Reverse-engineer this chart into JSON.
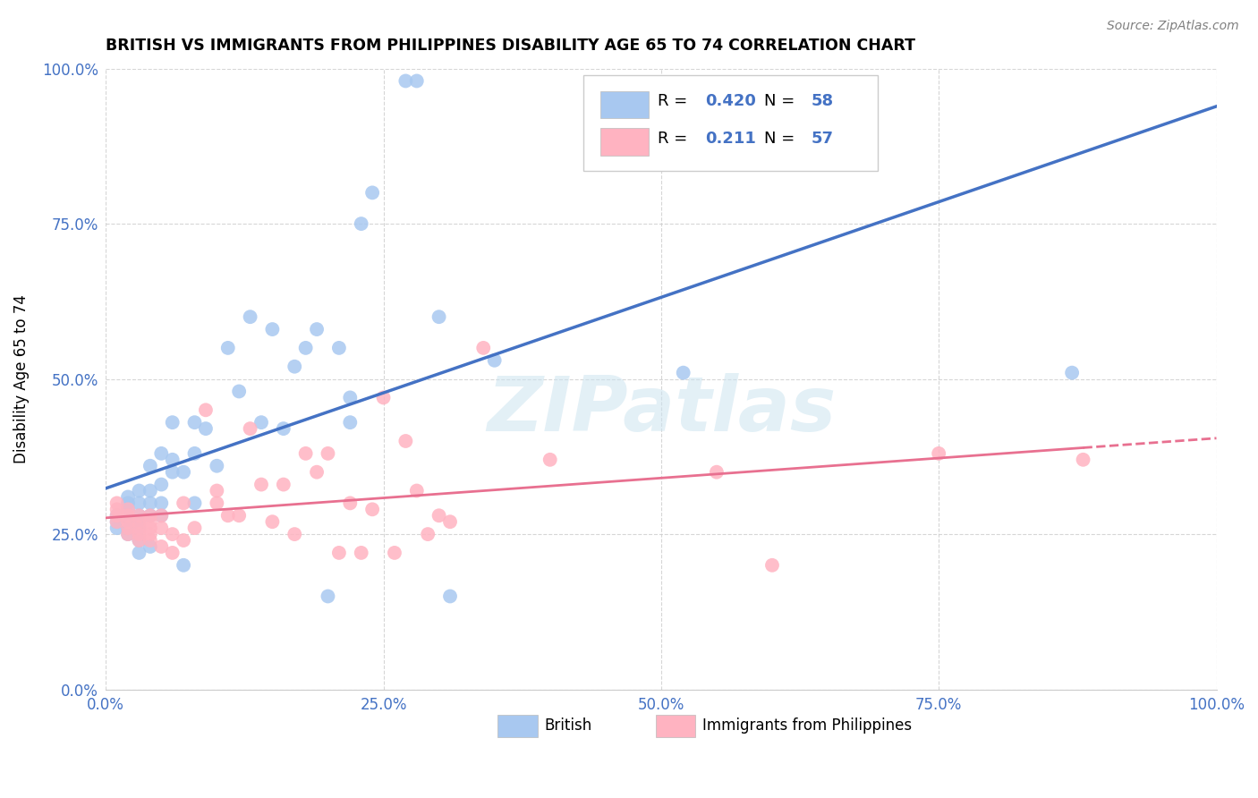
{
  "title": "BRITISH VS IMMIGRANTS FROM PHILIPPINES DISABILITY AGE 65 TO 74 CORRELATION CHART",
  "source": "Source: ZipAtlas.com",
  "ylabel": "Disability Age 65 to 74",
  "xlim": [
    0.0,
    1.0
  ],
  "ylim": [
    0.0,
    1.0
  ],
  "xticks": [
    0.0,
    0.25,
    0.5,
    0.75,
    1.0
  ],
  "yticks": [
    0.0,
    0.25,
    0.5,
    0.75,
    1.0
  ],
  "xticklabels": [
    "0.0%",
    "25.0%",
    "50.0%",
    "75.0%",
    "100.0%"
  ],
  "yticklabels": [
    "0.0%",
    "25.0%",
    "50.0%",
    "75.0%",
    "100.0%"
  ],
  "british_R": "0.420",
  "british_N": "58",
  "philippines_R": "0.211",
  "philippines_N": "57",
  "british_color": "#a8c8f0",
  "british_line_color": "#4472c4",
  "philippines_color": "#ffb3c1",
  "philippines_line_color": "#e87090",
  "legend_label_british": "British",
  "legend_label_philippines": "Immigrants from Philippines",
  "watermark": "ZIPatlas",
  "tick_color": "#4472c4",
  "british_x": [
    0.01,
    0.01,
    0.01,
    0.02,
    0.02,
    0.02,
    0.02,
    0.02,
    0.02,
    0.02,
    0.03,
    0.03,
    0.03,
    0.03,
    0.03,
    0.03,
    0.03,
    0.04,
    0.04,
    0.04,
    0.04,
    0.04,
    0.05,
    0.05,
    0.05,
    0.05,
    0.06,
    0.06,
    0.06,
    0.07,
    0.07,
    0.08,
    0.08,
    0.08,
    0.09,
    0.1,
    0.11,
    0.12,
    0.13,
    0.14,
    0.15,
    0.16,
    0.17,
    0.18,
    0.19,
    0.2,
    0.21,
    0.22,
    0.22,
    0.23,
    0.24,
    0.27,
    0.28,
    0.3,
    0.31,
    0.35,
    0.52,
    0.87
  ],
  "british_y": [
    0.26,
    0.27,
    0.28,
    0.25,
    0.26,
    0.27,
    0.28,
    0.29,
    0.3,
    0.31,
    0.22,
    0.24,
    0.26,
    0.27,
    0.28,
    0.3,
    0.32,
    0.23,
    0.28,
    0.3,
    0.32,
    0.36,
    0.28,
    0.3,
    0.33,
    0.38,
    0.35,
    0.37,
    0.43,
    0.2,
    0.35,
    0.3,
    0.38,
    0.43,
    0.42,
    0.36,
    0.55,
    0.48,
    0.6,
    0.43,
    0.58,
    0.42,
    0.52,
    0.55,
    0.58,
    0.15,
    0.55,
    0.43,
    0.47,
    0.75,
    0.8,
    0.98,
    0.98,
    0.6,
    0.15,
    0.53,
    0.51,
    0.51
  ],
  "philippines_x": [
    0.01,
    0.01,
    0.01,
    0.01,
    0.02,
    0.02,
    0.02,
    0.02,
    0.02,
    0.03,
    0.03,
    0.03,
    0.03,
    0.03,
    0.04,
    0.04,
    0.04,
    0.04,
    0.04,
    0.05,
    0.05,
    0.05,
    0.06,
    0.06,
    0.07,
    0.07,
    0.08,
    0.09,
    0.1,
    0.1,
    0.11,
    0.12,
    0.13,
    0.14,
    0.15,
    0.16,
    0.17,
    0.18,
    0.19,
    0.2,
    0.21,
    0.22,
    0.23,
    0.24,
    0.25,
    0.26,
    0.27,
    0.28,
    0.29,
    0.3,
    0.31,
    0.34,
    0.4,
    0.55,
    0.6,
    0.75,
    0.88
  ],
  "philippines_y": [
    0.27,
    0.28,
    0.29,
    0.3,
    0.25,
    0.26,
    0.27,
    0.28,
    0.29,
    0.24,
    0.25,
    0.26,
    0.27,
    0.28,
    0.24,
    0.25,
    0.26,
    0.27,
    0.28,
    0.23,
    0.26,
    0.28,
    0.22,
    0.25,
    0.24,
    0.3,
    0.26,
    0.45,
    0.3,
    0.32,
    0.28,
    0.28,
    0.42,
    0.33,
    0.27,
    0.33,
    0.25,
    0.38,
    0.35,
    0.38,
    0.22,
    0.3,
    0.22,
    0.29,
    0.47,
    0.22,
    0.4,
    0.32,
    0.25,
    0.28,
    0.27,
    0.55,
    0.37,
    0.35,
    0.2,
    0.38,
    0.37
  ]
}
